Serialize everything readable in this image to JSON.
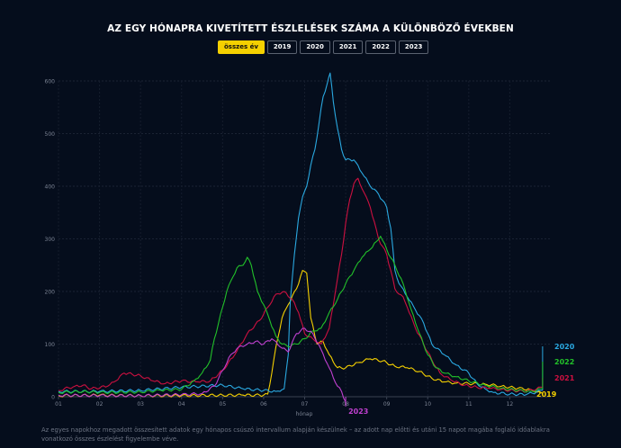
{
  "title": "AZ EGY HÓNAPRA KIVETÍTETT ÉSZLELÉSEK SZÁMA A KÜLÖNBÖZŐ ÉVEKBEN",
  "tabs": [
    {
      "label": "összes év",
      "active": true
    },
    {
      "label": "2019",
      "active": false
    },
    {
      "label": "2020",
      "active": false
    },
    {
      "label": "2021",
      "active": false
    },
    {
      "label": "2022",
      "active": false
    },
    {
      "label": "2023",
      "active": false
    }
  ],
  "footnote": "Az egyes napokhoz megadott összesített adatok egy hónapos csúszó intervallum alapján készülnek – az adott nap előtti és utáni 15 napot magába foglaló időablakra vonatkozó összes észlelést figyelembe véve.",
  "chart_data": {
    "type": "line",
    "xlabel": "hónap",
    "ylabel": "",
    "x_ticks": [
      "01",
      "02",
      "03",
      "04",
      "05",
      "06",
      "07",
      "08",
      "09",
      "10",
      "11",
      "12"
    ],
    "y_ticks": [
      "0",
      "100",
      "200",
      "300",
      "400",
      "500",
      "600"
    ],
    "xlim": [
      1,
      13
    ],
    "ylim": [
      0,
      600
    ],
    "grid": true,
    "legend": "right-end labels",
    "series": [
      {
        "name": "2019",
        "color": "#f5d000",
        "points": [
          [
            1,
            2
          ],
          [
            2,
            3
          ],
          [
            3,
            2
          ],
          [
            4,
            2
          ],
          [
            5,
            3
          ],
          [
            5.5,
            3
          ],
          [
            6,
            3
          ],
          [
            6.1,
            5
          ],
          [
            6.2,
            45
          ],
          [
            6.3,
            95
          ],
          [
            6.45,
            150
          ],
          [
            6.6,
            175
          ],
          [
            6.8,
            205
          ],
          [
            6.95,
            240
          ],
          [
            7.05,
            235
          ],
          [
            7.15,
            150
          ],
          [
            7.3,
            100
          ],
          [
            7.45,
            105
          ],
          [
            7.6,
            80
          ],
          [
            7.8,
            55
          ],
          [
            8.0,
            55
          ],
          [
            8.3,
            65
          ],
          [
            8.6,
            72
          ],
          [
            8.9,
            68
          ],
          [
            9.2,
            58
          ],
          [
            9.5,
            55
          ],
          [
            9.8,
            48
          ],
          [
            10.1,
            35
          ],
          [
            10.4,
            28
          ],
          [
            10.7,
            26
          ],
          [
            11.0,
            25
          ],
          [
            11.4,
            24
          ],
          [
            11.8,
            20
          ],
          [
            12.2,
            16
          ],
          [
            12.5,
            14
          ],
          [
            12.8,
            6
          ]
        ]
      },
      {
        "name": "2020",
        "color": "#2aa8e0",
        "points": [
          [
            1,
            10
          ],
          [
            2,
            10
          ],
          [
            3,
            12
          ],
          [
            4,
            18
          ],
          [
            5,
            22
          ],
          [
            5.5,
            15
          ],
          [
            6,
            12
          ],
          [
            6.3,
            10
          ],
          [
            6.5,
            15
          ],
          [
            6.6,
            80
          ],
          [
            6.65,
            180
          ],
          [
            6.75,
            270
          ],
          [
            6.85,
            340
          ],
          [
            6.95,
            380
          ],
          [
            7.05,
            400
          ],
          [
            7.15,
            440
          ],
          [
            7.25,
            470
          ],
          [
            7.35,
            520
          ],
          [
            7.45,
            570
          ],
          [
            7.55,
            595
          ],
          [
            7.62,
            615
          ],
          [
            7.7,
            560
          ],
          [
            7.8,
            510
          ],
          [
            7.9,
            470
          ],
          [
            8.0,
            450
          ],
          [
            8.2,
            450
          ],
          [
            8.4,
            425
          ],
          [
            8.6,
            400
          ],
          [
            8.8,
            385
          ],
          [
            9.0,
            360
          ],
          [
            9.1,
            320
          ],
          [
            9.2,
            240
          ],
          [
            9.3,
            215
          ],
          [
            9.5,
            190
          ],
          [
            9.7,
            165
          ],
          [
            9.9,
            140
          ],
          [
            10.1,
            100
          ],
          [
            10.4,
            80
          ],
          [
            10.7,
            60
          ],
          [
            11.0,
            45
          ],
          [
            11.2,
            25
          ],
          [
            11.4,
            15
          ],
          [
            11.6,
            8
          ],
          [
            12.0,
            5
          ],
          [
            12.4,
            4
          ],
          [
            12.8,
            12
          ]
        ]
      },
      {
        "name": "2021",
        "color": "#cc1040",
        "points": [
          [
            1,
            12
          ],
          [
            1.4,
            20
          ],
          [
            1.6,
            22
          ],
          [
            1.8,
            15
          ],
          [
            2.2,
            20
          ],
          [
            2.4,
            30
          ],
          [
            2.6,
            45
          ],
          [
            3.0,
            40
          ],
          [
            3.3,
            30
          ],
          [
            3.6,
            25
          ],
          [
            4.0,
            30
          ],
          [
            4.4,
            28
          ],
          [
            4.7,
            30
          ],
          [
            5.0,
            50
          ],
          [
            5.3,
            80
          ],
          [
            5.6,
            120
          ],
          [
            5.9,
            145
          ],
          [
            6.1,
            170
          ],
          [
            6.3,
            195
          ],
          [
            6.5,
            200
          ],
          [
            6.7,
            185
          ],
          [
            6.85,
            160
          ],
          [
            7.0,
            120
          ],
          [
            7.2,
            110
          ],
          [
            7.4,
            100
          ],
          [
            7.6,
            130
          ],
          [
            7.75,
            200
          ],
          [
            7.9,
            270
          ],
          [
            8.0,
            330
          ],
          [
            8.1,
            375
          ],
          [
            8.2,
            405
          ],
          [
            8.3,
            415
          ],
          [
            8.4,
            395
          ],
          [
            8.5,
            380
          ],
          [
            8.6,
            360
          ],
          [
            8.8,
            300
          ],
          [
            9.0,
            270
          ],
          [
            9.1,
            240
          ],
          [
            9.2,
            205
          ],
          [
            9.3,
            195
          ],
          [
            9.4,
            190
          ],
          [
            9.5,
            170
          ],
          [
            9.7,
            130
          ],
          [
            9.9,
            100
          ],
          [
            10.1,
            70
          ],
          [
            10.3,
            45
          ],
          [
            10.6,
            30
          ],
          [
            10.9,
            22
          ],
          [
            11.2,
            18
          ],
          [
            11.5,
            16
          ],
          [
            11.8,
            14
          ],
          [
            12.0,
            12
          ],
          [
            12.4,
            10
          ],
          [
            12.8,
            18
          ]
        ]
      },
      {
        "name": "2022",
        "color": "#22c02a",
        "points": [
          [
            1,
            8
          ],
          [
            1.6,
            10
          ],
          [
            2.0,
            8
          ],
          [
            3.0,
            9
          ],
          [
            3.5,
            12
          ],
          [
            4.0,
            14
          ],
          [
            4.3,
            30
          ],
          [
            4.5,
            45
          ],
          [
            4.7,
            70
          ],
          [
            4.8,
            110
          ],
          [
            4.9,
            140
          ],
          [
            5.0,
            170
          ],
          [
            5.1,
            200
          ],
          [
            5.2,
            220
          ],
          [
            5.35,
            245
          ],
          [
            5.5,
            250
          ],
          [
            5.6,
            265
          ],
          [
            5.7,
            250
          ],
          [
            5.85,
            200
          ],
          [
            6.0,
            175
          ],
          [
            6.15,
            145
          ],
          [
            6.3,
            115
          ],
          [
            6.45,
            100
          ],
          [
            6.6,
            95
          ],
          [
            6.8,
            100
          ],
          [
            7.0,
            110
          ],
          [
            7.2,
            125
          ],
          [
            7.4,
            130
          ],
          [
            7.6,
            160
          ],
          [
            7.8,
            185
          ],
          [
            8.0,
            215
          ],
          [
            8.2,
            240
          ],
          [
            8.4,
            265
          ],
          [
            8.6,
            280
          ],
          [
            8.75,
            295
          ],
          [
            8.85,
            305
          ],
          [
            9.0,
            280
          ],
          [
            9.2,
            250
          ],
          [
            9.4,
            215
          ],
          [
            9.6,
            165
          ],
          [
            9.8,
            120
          ],
          [
            10.0,
            80
          ],
          [
            10.2,
            55
          ],
          [
            10.4,
            45
          ],
          [
            10.7,
            38
          ],
          [
            11.0,
            30
          ],
          [
            11.4,
            22
          ],
          [
            11.8,
            16
          ],
          [
            12.2,
            12
          ],
          [
            12.5,
            10
          ],
          [
            12.8,
            15
          ]
        ]
      },
      {
        "name": "2023",
        "color": "#c040d0",
        "points": [
          [
            1,
            3
          ],
          [
            2,
            2
          ],
          [
            3,
            2
          ],
          [
            4,
            4
          ],
          [
            4.5,
            6
          ],
          [
            4.8,
            20
          ],
          [
            5.0,
            50
          ],
          [
            5.2,
            80
          ],
          [
            5.4,
            95
          ],
          [
            5.6,
            100
          ],
          [
            5.8,
            105
          ],
          [
            6.0,
            100
          ],
          [
            6.2,
            110
          ],
          [
            6.4,
            95
          ],
          [
            6.6,
            85
          ],
          [
            6.8,
            120
          ],
          [
            7.0,
            130
          ],
          [
            7.2,
            120
          ],
          [
            7.4,
            90
          ],
          [
            7.6,
            55
          ],
          [
            7.8,
            20
          ],
          [
            7.9,
            10
          ],
          [
            8.0,
            -10
          ]
        ]
      }
    ]
  }
}
